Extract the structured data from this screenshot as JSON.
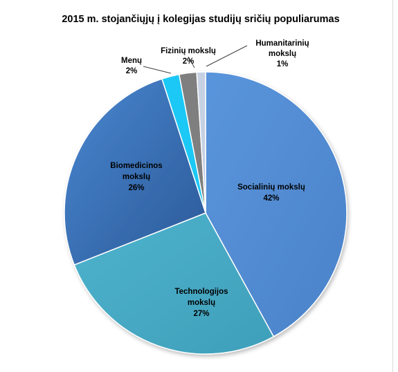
{
  "chart_data": {
    "type": "pie",
    "title": "2015 m. stojančiųjų į kolegijas studijų sričių populiarumas",
    "slices": [
      {
        "label_lines": [
          "Socialinių mokslų",
          "42%"
        ],
        "value": 42,
        "color": "#558ed5"
      },
      {
        "label_lines": [
          "Technologijos",
          "mokslų",
          "27%"
        ],
        "value": 27,
        "color": "#4bacc6"
      },
      {
        "label_lines": [
          "Biomedicinos",
          "mokslų",
          "26%"
        ],
        "value": 26,
        "color": "#3a6fb5"
      },
      {
        "label_lines": [
          "Menų",
          "2%"
        ],
        "value": 2,
        "color": "#1ec8f5"
      },
      {
        "label_lines": [
          "Fizinių mokslų",
          "2%"
        ],
        "value": 2,
        "color": "#7f7f7f"
      },
      {
        "label_lines": [
          "Humanitarinių",
          "mokslų",
          "1%"
        ],
        "value": 1,
        "color": "#c6d1e3"
      }
    ]
  }
}
